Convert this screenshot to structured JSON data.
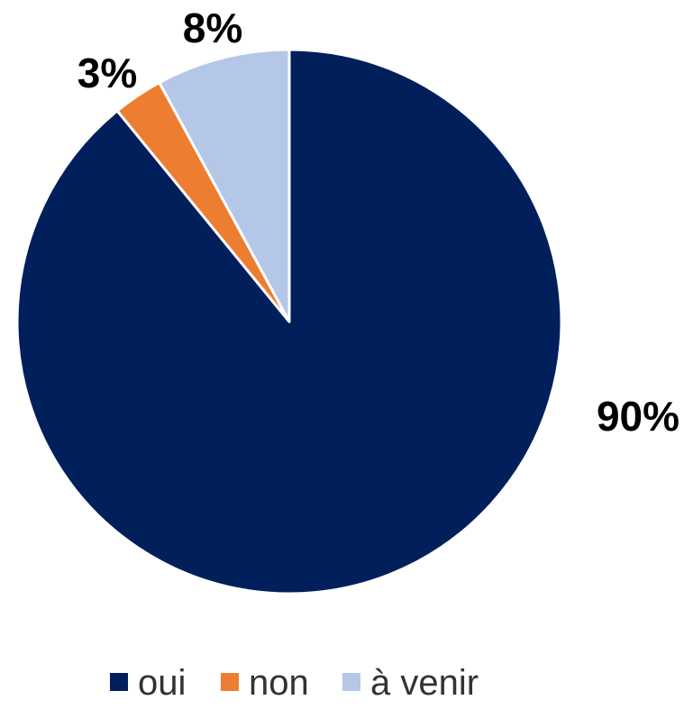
{
  "chart_data": {
    "type": "pie",
    "slices": [
      {
        "label": "oui",
        "value": 90,
        "display": "90%",
        "color": "#001F5B"
      },
      {
        "label": "non",
        "value": 3,
        "display": "3%",
        "color": "#ED7D31"
      },
      {
        "label": "à venir",
        "value": 8,
        "display": "8%",
        "color": "#B4C7E7"
      }
    ],
    "legend_position": "bottom"
  }
}
